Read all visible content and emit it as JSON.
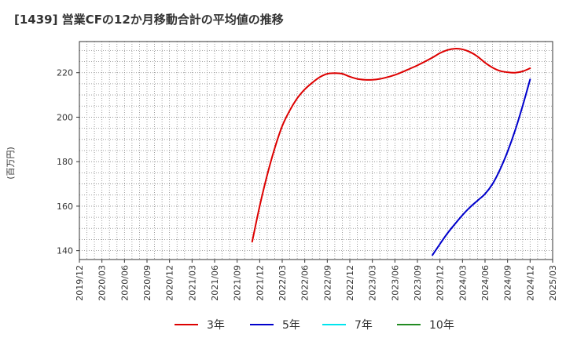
{
  "chart_data": {
    "type": "line",
    "title": "[1439]  営業CFの12か月移動合計の平均値の推移",
    "xlabel": "",
    "ylabel": "(百万円)",
    "ylim": [
      136,
      234
    ],
    "yticks": [
      140,
      160,
      180,
      200,
      220
    ],
    "x_tick_labels": [
      "2019/12",
      "2020/03",
      "2020/06",
      "2020/09",
      "2020/12",
      "2021/03",
      "2021/06",
      "2021/09",
      "2021/12",
      "2022/03",
      "2022/06",
      "2022/09",
      "2022/12",
      "2023/03",
      "2023/06",
      "2023/09",
      "2023/12",
      "2024/03",
      "2024/06",
      "2024/09",
      "2024/12",
      "2025/03"
    ],
    "grid": true,
    "legend_position": "bottom",
    "series": [
      {
        "name": "3年",
        "color": "#dd0000",
        "points": [
          [
            "2021/11",
            144
          ],
          [
            "2021/12",
            160
          ],
          [
            "2022/01",
            174
          ],
          [
            "2022/02",
            186
          ],
          [
            "2022/03",
            196
          ],
          [
            "2022/04",
            203
          ],
          [
            "2022/05",
            208.5
          ],
          [
            "2022/06",
            212.5
          ],
          [
            "2022/07",
            215.5
          ],
          [
            "2022/08",
            218
          ],
          [
            "2022/09",
            219.5
          ],
          [
            "2022/10",
            219.8
          ],
          [
            "2022/11",
            219.5
          ],
          [
            "2022/12",
            218.2
          ],
          [
            "2023/01",
            217.2
          ],
          [
            "2023/02",
            216.8
          ],
          [
            "2023/03",
            216.8
          ],
          [
            "2023/04",
            217.2
          ],
          [
            "2023/05",
            218
          ],
          [
            "2023/06",
            219
          ],
          [
            "2023/07",
            220.3
          ],
          [
            "2023/08",
            221.8
          ],
          [
            "2023/09",
            223.3
          ],
          [
            "2023/10",
            225
          ],
          [
            "2023/11",
            226.8
          ],
          [
            "2023/12",
            228.8
          ],
          [
            "2024/01",
            230.2
          ],
          [
            "2024/02",
            230.8
          ],
          [
            "2024/03",
            230.5
          ],
          [
            "2024/04",
            229.3
          ],
          [
            "2024/05",
            227.3
          ],
          [
            "2024/06",
            224.5
          ],
          [
            "2024/07",
            222.3
          ],
          [
            "2024/08",
            220.8
          ],
          [
            "2024/09",
            220.2
          ],
          [
            "2024/10",
            220
          ],
          [
            "2024/11",
            220.6
          ],
          [
            "2024/12",
            222
          ]
        ]
      },
      {
        "name": "5年",
        "color": "#0000cc",
        "points": [
          [
            "2023/11",
            138
          ],
          [
            "2023/12",
            143
          ],
          [
            "2024/01",
            147.8
          ],
          [
            "2024/02",
            152
          ],
          [
            "2024/03",
            156
          ],
          [
            "2024/04",
            159.5
          ],
          [
            "2024/05",
            162.5
          ],
          [
            "2024/06",
            165.5
          ],
          [
            "2024/07",
            170
          ],
          [
            "2024/08",
            176.5
          ],
          [
            "2024/09",
            184.5
          ],
          [
            "2024/10",
            194
          ],
          [
            "2024/11",
            205
          ],
          [
            "2024/12",
            217
          ]
        ]
      },
      {
        "name": "7年",
        "color": "#00e5ee",
        "points": []
      },
      {
        "name": "10年",
        "color": "#228b22",
        "points": []
      }
    ]
  }
}
